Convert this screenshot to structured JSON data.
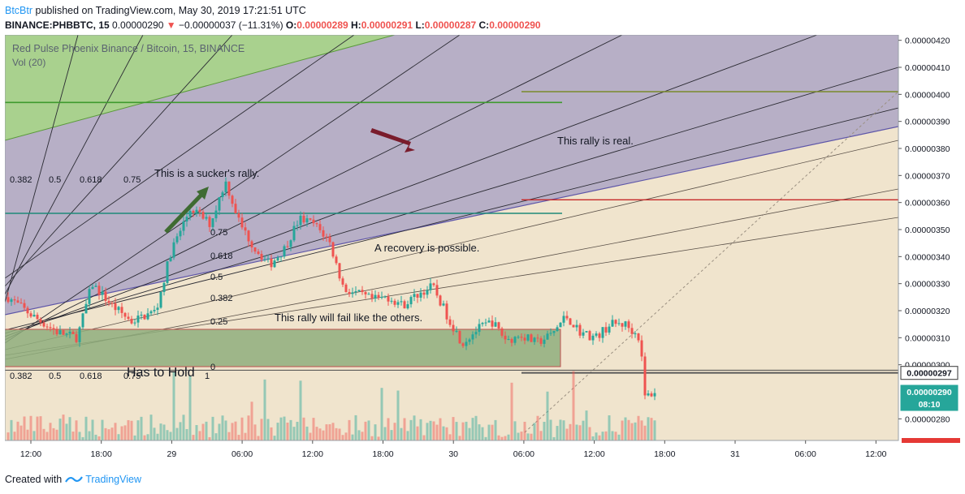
{
  "header": {
    "publisher": "BtcBtr",
    "published_text": "published on TradingView.com, May 30, 2019 17:21:51 UTC",
    "symbol": "BINANCE:PHBBTC, 15",
    "last": "0.00000290",
    "arrow": "▼",
    "change": "−0.00000037 (−11.31%)",
    "o_label": "O:",
    "o": "0.00000289",
    "h_label": "H:",
    "h": "0.00000291",
    "l_label": "L:",
    "l": "0.00000287",
    "c_label": "C:",
    "c": "0.00000290"
  },
  "legend": {
    "title": "Red Pulse Phoenix Binance / Bitcoin, 15, BINANCE",
    "volume": "Vol (20)"
  },
  "footer": {
    "created_with": "Created with",
    "brand": "TradingView"
  },
  "colors": {
    "up": "#26a69a",
    "down": "#ef5350",
    "purple_zone": "#b7afc6",
    "beige": "#f0e4cd",
    "green_zone": "#a9d18e",
    "box_zone": "#8fae7c"
  },
  "chart_data": {
    "type": "candlestick",
    "ylim": [
      2.72e-06,
      4.22e-06
    ],
    "y_ticks": [
      "0.00000420",
      "0.00000410",
      "0.00000400",
      "0.00000390",
      "0.00000380",
      "0.00000370",
      "0.00000360",
      "0.00000350",
      "0.00000340",
      "0.00000330",
      "0.00000320",
      "0.00000310",
      "0.00000300",
      "0.00000280"
    ],
    "x_ticks": [
      "12:00",
      "18:00",
      "29",
      "06:00",
      "12:00",
      "18:00",
      "30",
      "06:00",
      "12:00",
      "18:00",
      "31",
      "06:00",
      "12:00"
    ],
    "price_labels": [
      {
        "text": "0.00000297",
        "value": 2.97e-06
      },
      {
        "text": "0.00000290",
        "value": 2.9e-06
      },
      {
        "text": "08:10",
        "value": 2.855e-06
      }
    ],
    "annotations": [
      "This is a sucker's rally.",
      "This rally is real.",
      "A recovery is possible.",
      "This rally will fail like the others.",
      "Has to Hold"
    ],
    "fib_top_labels": [
      "0.382",
      "0.5",
      "0.618",
      "0.75"
    ],
    "fib_bottom_labels": [
      "0.382",
      "0.5",
      "0.618",
      "0.75",
      "1"
    ],
    "fib_vertical_labels": [
      "0.75",
      "0.618",
      "0.5",
      "0.382",
      "0.25",
      "0"
    ],
    "horizontal_levels": [
      {
        "name": "green-top",
        "value": 3.97e-06
      },
      {
        "name": "olive-right",
        "value": 4.01e-06
      },
      {
        "name": "teal-mid",
        "value": 3.56e-06
      },
      {
        "name": "red-right",
        "value": 3.61e-06
      },
      {
        "name": "hold-line",
        "value": 2.98e-06
      },
      {
        "name": "current-line",
        "value": 2.97e-06
      }
    ],
    "price_path": [
      [
        0,
        3.25e-06
      ],
      [
        5,
        3.18e-06
      ],
      [
        10,
        3.12e-06
      ],
      [
        14,
        3.1e-06
      ],
      [
        17,
        3.3e-06
      ],
      [
        21,
        3.22e-06
      ],
      [
        25,
        3.16e-06
      ],
      [
        30,
        3.2e-06
      ],
      [
        33,
        3.42e-06
      ],
      [
        37,
        3.58e-06
      ],
      [
        41,
        3.52e-06
      ],
      [
        44,
        3.68e-06
      ],
      [
        47,
        3.52e-06
      ],
      [
        50,
        3.43e-06
      ],
      [
        53,
        3.37e-06
      ],
      [
        56,
        3.43e-06
      ],
      [
        59,
        3.54e-06
      ],
      [
        62,
        3.52e-06
      ],
      [
        65,
        3.46e-06
      ],
      [
        68,
        3.28e-06
      ],
      [
        71,
        3.26e-06
      ],
      [
        74,
        3.24e-06
      ],
      [
        77,
        3.25e-06
      ],
      [
        80,
        3.22e-06
      ],
      [
        83,
        3.26e-06
      ],
      [
        86,
        3.29e-06
      ],
      [
        89,
        3.18e-06
      ],
      [
        92,
        3.08e-06
      ],
      [
        95,
        3.13e-06
      ],
      [
        98,
        3.16e-06
      ],
      [
        101,
        3.09e-06
      ],
      [
        104,
        3.11e-06
      ],
      [
        107,
        3.08e-06
      ],
      [
        110,
        3.11e-06
      ],
      [
        113,
        3.18e-06
      ],
      [
        116,
        3.12e-06
      ],
      [
        119,
        3.1e-06
      ],
      [
        122,
        3.15e-06
      ],
      [
        125,
        3.15e-06
      ],
      [
        128,
        3.1e-06
      ],
      [
        129,
        2.88e-06
      ],
      [
        131,
        2.9e-06
      ]
    ]
  }
}
